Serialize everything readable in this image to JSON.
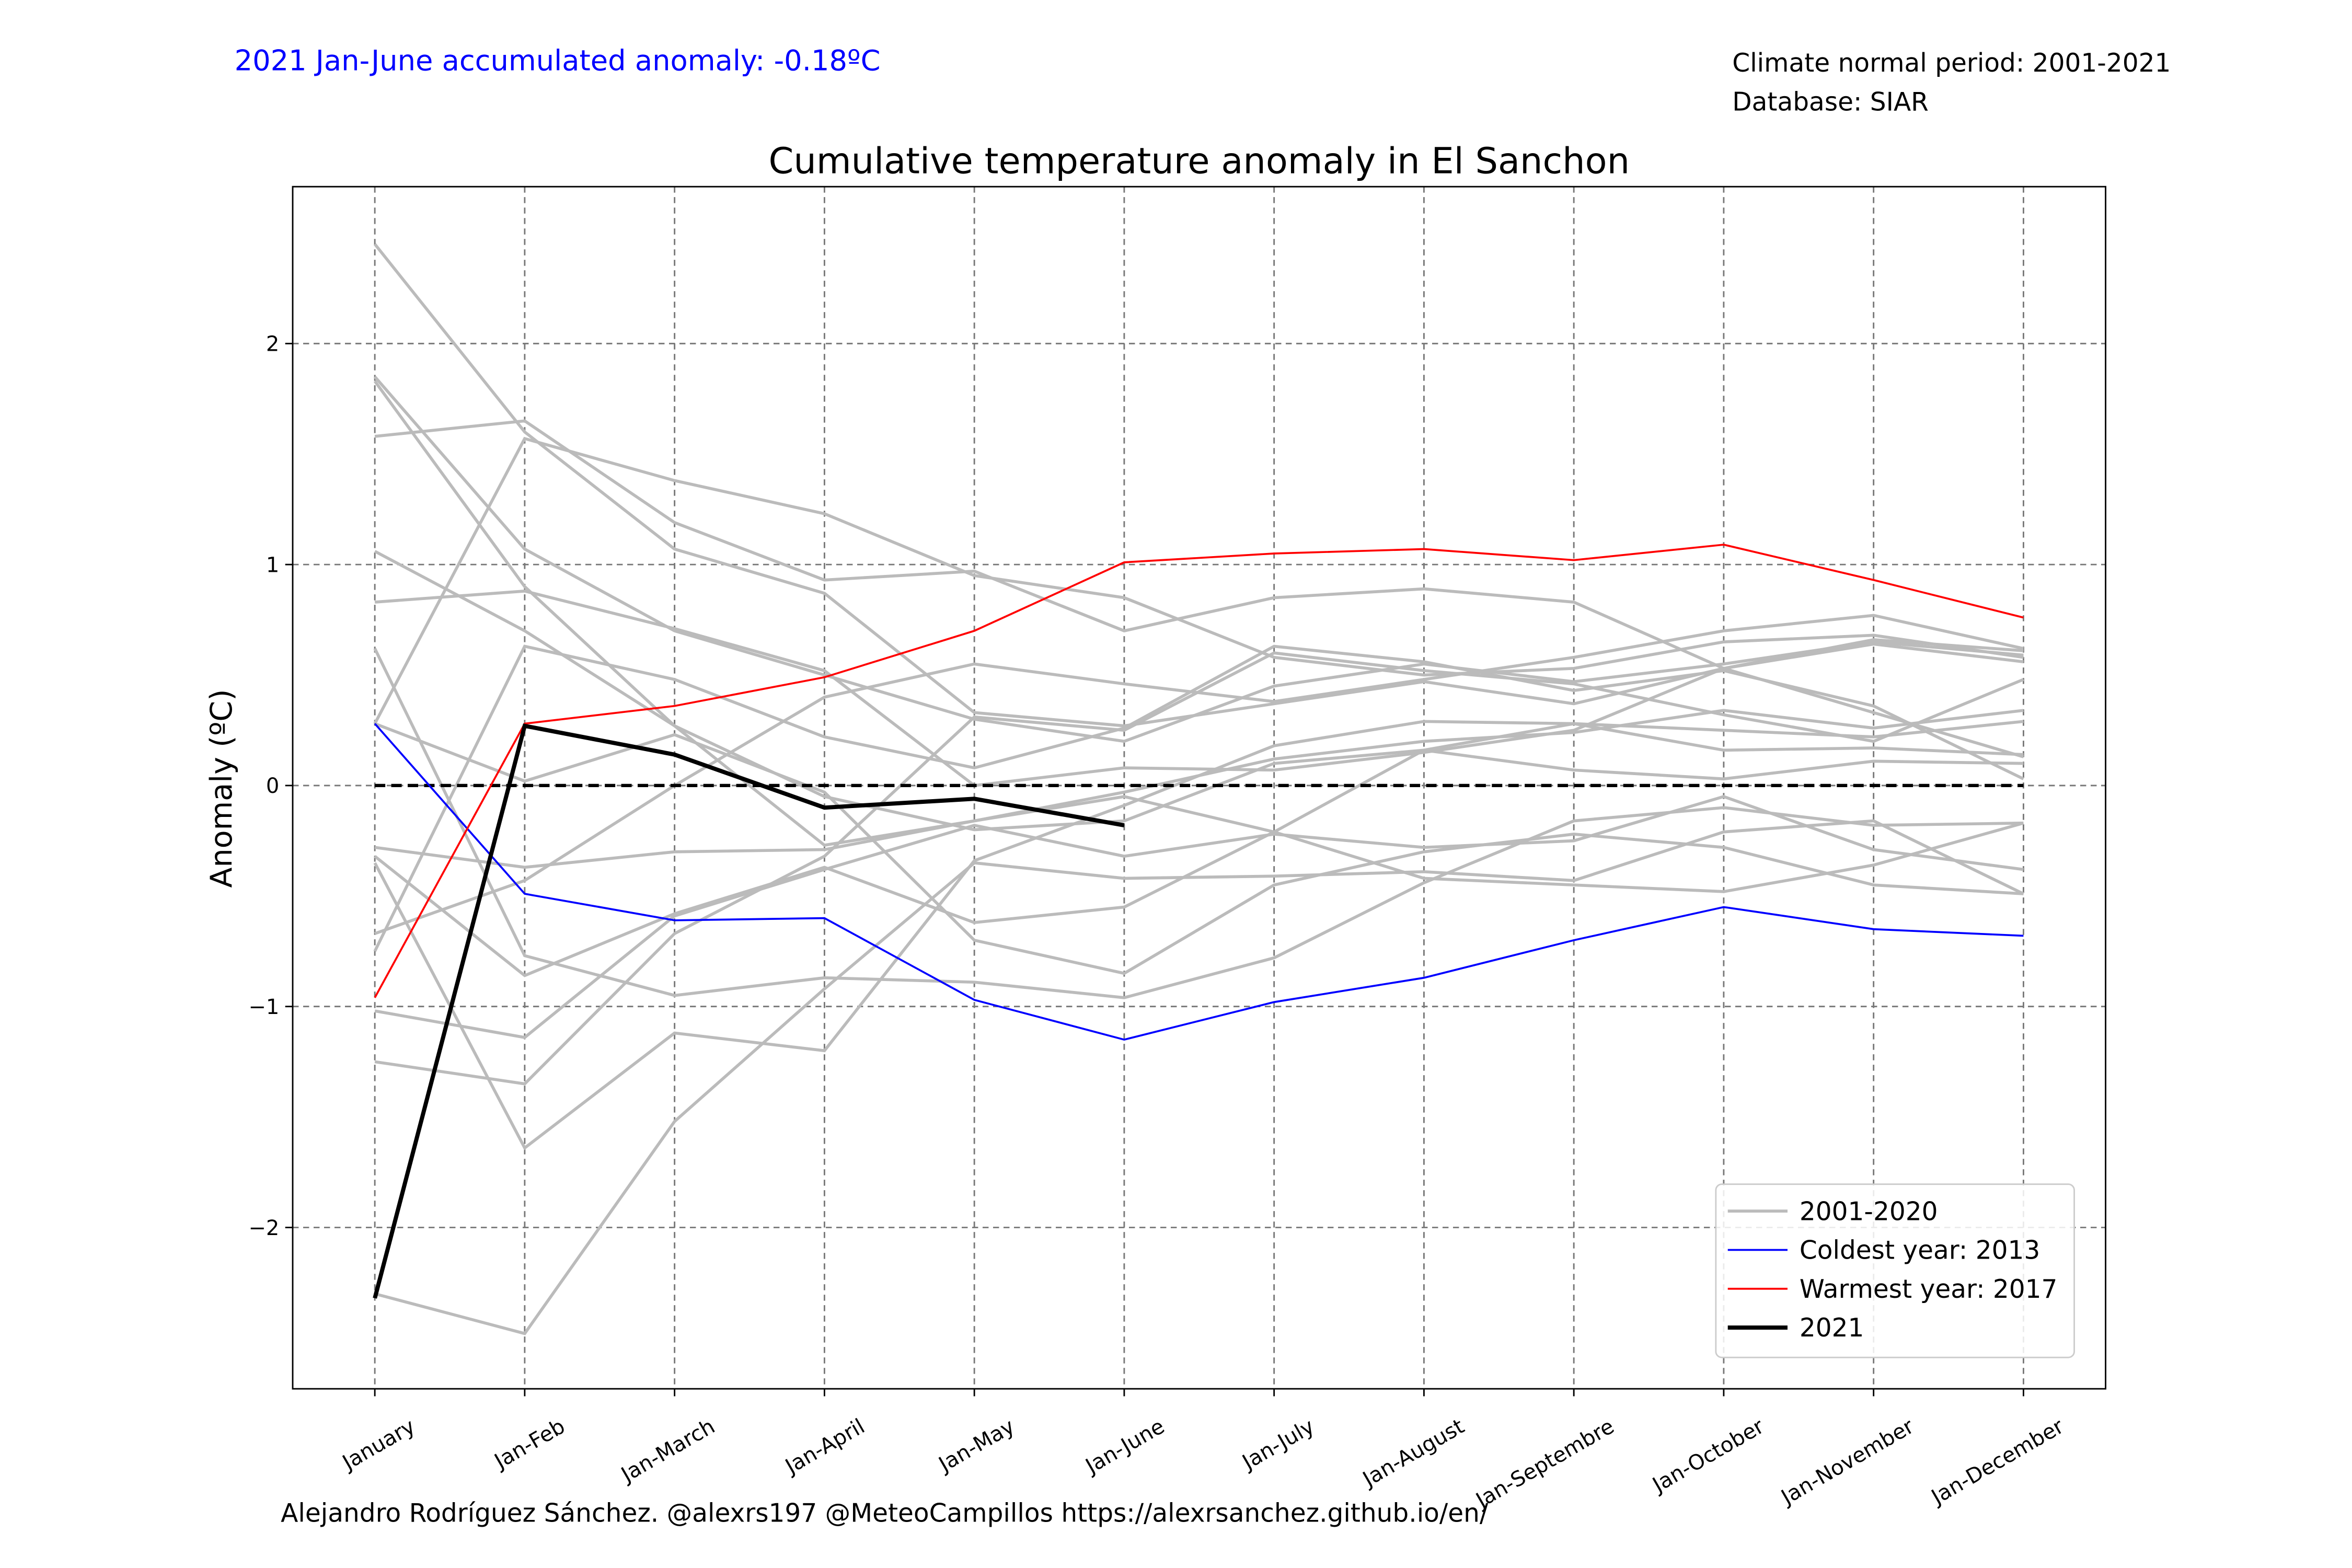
{
  "chart_data": {
    "type": "line",
    "title": "Cumulative temperature anomaly in El Sanchon",
    "annotation": "2021 Jan-June accumulated anomaly: -0.18ºC",
    "info_lines": [
      "Climate normal period: 2001-2021",
      "Database: SIAR"
    ],
    "footer": "Alejandro Rodríguez Sánchez. @alexrs197 @MeteoCampillos   https://alexrsanchez.github.io/en/",
    "ylabel": "Anomaly (ºC)",
    "categories": [
      "January",
      "Jan-Feb",
      "Jan-March",
      "Jan-April",
      "Jan-May",
      "Jan-June",
      "Jan-July",
      "Jan-August",
      "Jan-Septembre",
      "Jan-October",
      "Jan-November",
      "Jan-December"
    ],
    "ylim": [
      -2.73,
      2.71
    ],
    "yticks": [
      {
        "value": -2,
        "label": "−2"
      },
      {
        "value": -1,
        "label": "−1"
      },
      0,
      1,
      2
    ],
    "grid": true,
    "reference_line": 0,
    "legend": "lower right",
    "gray_series": {
      "name": "2001-2020",
      "color": "#bbbbbb",
      "lines": [
        [
          2.45,
          1.6,
          1.07,
          0.87,
          0.33,
          0.27,
          0.37,
          0.47,
          0.37,
          0.53,
          0.66,
          0.61
        ],
        [
          1.85,
          1.07,
          0.7,
          0.5,
          0.3,
          0.2,
          0.45,
          0.55,
          0.47,
          0.55,
          0.65,
          0.59
        ],
        [
          1.83,
          0.9,
          0.27,
          -0.27,
          -0.16,
          -0.05,
          -0.21,
          -0.42,
          -0.45,
          -0.48,
          -0.36,
          -0.17
        ],
        [
          1.58,
          1.65,
          1.19,
          0.93,
          0.97,
          0.7,
          0.85,
          0.89,
          0.83,
          0.53,
          0.33,
          0.13
        ],
        [
          1.06,
          0.7,
          0.27,
          -0.05,
          -0.2,
          -0.16,
          0.1,
          0.16,
          0.07,
          0.03,
          0.11,
          0.1
        ],
        [
          0.83,
          0.88,
          0.71,
          0.52,
          0.0,
          0.08,
          0.07,
          0.15,
          0.25,
          0.53,
          0.64,
          0.56
        ],
        [
          0.62,
          -0.77,
          -0.95,
          -0.87,
          -0.89,
          -0.96,
          -0.78,
          -0.44,
          -0.16,
          -0.1,
          -0.18,
          -0.17
        ],
        [
          0.28,
          0.02,
          0.23,
          -0.03,
          -0.7,
          -0.85,
          -0.45,
          -0.3,
          -0.22,
          -0.28,
          -0.45,
          -0.49
        ],
        [
          -0.28,
          -0.37,
          -0.3,
          -0.29,
          -0.16,
          -0.03,
          0.12,
          0.2,
          0.24,
          0.34,
          0.26,
          0.34
        ],
        [
          -0.32,
          -0.86,
          -0.58,
          -0.37,
          -0.62,
          -0.55,
          -0.21,
          0.16,
          0.28,
          0.16,
          0.17,
          0.14
        ],
        [
          -0.35,
          -1.64,
          -1.12,
          -1.2,
          -0.34,
          -0.09,
          0.18,
          0.29,
          0.28,
          0.25,
          0.22,
          0.29
        ],
        [
          -0.67,
          -0.43,
          0.0,
          0.4,
          0.55,
          0.46,
          0.38,
          0.48,
          0.58,
          0.7,
          0.77,
          0.62
        ],
        [
          -0.75,
          0.63,
          0.48,
          0.22,
          0.08,
          0.26,
          0.63,
          0.56,
          0.43,
          0.52,
          0.36,
          0.03
        ],
        [
          -1.02,
          -1.14,
          -0.59,
          -0.38,
          -0.18,
          -0.32,
          -0.22,
          -0.28,
          -0.25,
          -0.05,
          -0.29,
          -0.38
        ],
        [
          -1.25,
          -1.35,
          -0.67,
          -0.32,
          0.31,
          0.25,
          0.6,
          0.52,
          0.46,
          0.32,
          0.2,
          0.48
        ],
        [
          -2.3,
          -2.48,
          -1.52,
          -0.92,
          -0.35,
          -0.42,
          -0.41,
          -0.39,
          -0.43,
          -0.21,
          -0.16,
          -0.49
        ],
        [
          0.28,
          1.57,
          1.38,
          1.23,
          0.95,
          0.85,
          0.58,
          0.5,
          0.53,
          0.65,
          0.68,
          0.58
        ]
      ]
    },
    "series": [
      {
        "name": "Coldest year: 2013",
        "color": "#0000ff",
        "width": 1.3,
        "values": [
          0.28,
          -0.49,
          -0.61,
          -0.6,
          -0.97,
          -1.15,
          -0.98,
          -0.87,
          -0.7,
          -0.55,
          -0.65,
          -0.68
        ]
      },
      {
        "name": "Warmest year: 2017",
        "color": "#ff0000",
        "width": 1.3,
        "values": [
          -0.96,
          0.28,
          0.36,
          0.49,
          0.7,
          1.01,
          1.05,
          1.07,
          1.02,
          1.09,
          0.93,
          0.76
        ]
      },
      {
        "name": "2021",
        "color": "#000000",
        "width": 2.8,
        "values": [
          -2.32,
          0.27,
          0.14,
          -0.1,
          -0.06,
          -0.18,
          null,
          null,
          null,
          null,
          null,
          null
        ]
      }
    ]
  }
}
